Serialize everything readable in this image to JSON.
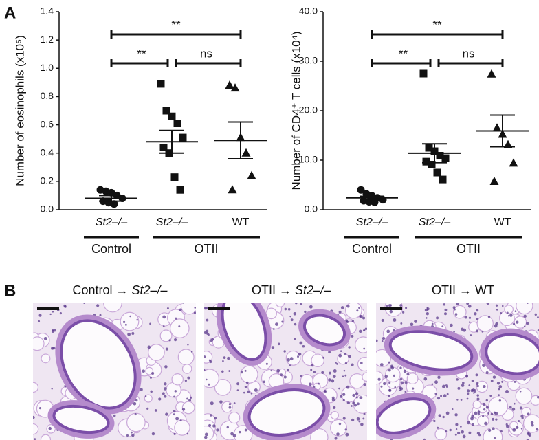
{
  "panel_labels": [
    "A",
    "B"
  ],
  "chart_data": [
    {
      "type": "dotplot",
      "y_label": "Number of eosinophils (x10⁵)",
      "categories": [
        "St2–/–",
        "St2–/–",
        "WT"
      ],
      "italic": [
        true,
        true,
        false
      ],
      "markers": [
        "circle",
        "square",
        "triangle"
      ],
      "color": "#111111",
      "groups": [
        "Control",
        "OTII"
      ],
      "points": [
        [
          0.14,
          0.13,
          0.12,
          0.1,
          0.08,
          0.06,
          0.05,
          0.04
        ],
        [
          0.89,
          0.7,
          0.66,
          0.61,
          0.51,
          0.44,
          0.4,
          0.23,
          0.14
        ],
        [
          0.88,
          0.86,
          0.51,
          0.4,
          0.24,
          0.14
        ]
      ],
      "means": [
        0.08,
        0.48,
        0.49
      ],
      "sems": [
        0.02,
        0.08,
        0.13
      ],
      "ylim": [
        0,
        1.4
      ],
      "yticks": [
        {
          "value": 0,
          "label": "0.0"
        },
        0.2,
        0.4,
        0.6,
        0.8,
        {
          "value": 1,
          "label": "1.0"
        },
        1.2,
        1.4
      ],
      "comparisons": [
        {
          "label": "**",
          "pair": [
            0,
            1
          ]
        },
        {
          "label": "ns",
          "pair": [
            1,
            2
          ]
        },
        {
          "label": "**",
          "pair": [
            0,
            2
          ]
        }
      ]
    },
    {
      "type": "dotplot",
      "y_label": "Number of CD4⁺ T cells (x10⁴)",
      "categories": [
        "St2–/–",
        "St2–/–",
        "WT"
      ],
      "italic": [
        true,
        true,
        false
      ],
      "markers": [
        "circle",
        "square",
        "triangle"
      ],
      "color": "#111111",
      "groups": [
        "Control",
        "OTII"
      ],
      "points": [
        [
          4.0,
          3.2,
          2.8,
          2.4,
          2.0,
          1.8,
          1.6,
          1.5
        ],
        [
          27.5,
          12.5,
          11.8,
          10.9,
          10.4,
          9.7,
          9.1,
          7.5,
          6.1
        ],
        [
          27.4,
          16.5,
          15.2,
          13.1,
          9.4,
          5.7
        ]
      ],
      "means": [
        2.4,
        11.4,
        15.9
      ],
      "sems": [
        0.3,
        1.9,
        3.2
      ],
      "ylim": [
        0,
        40
      ],
      "yticks": [
        {
          "value": 0,
          "label": "0.0"
        },
        {
          "value": 10,
          "label": "10.0"
        },
        {
          "value": 20,
          "label": "20.0"
        },
        {
          "value": 30,
          "label": "30.0"
        },
        {
          "value": 40,
          "label": "40.0"
        }
      ],
      "comparisons": [
        {
          "label": "**",
          "pair": [
            0,
            1
          ]
        },
        {
          "label": "ns",
          "pair": [
            1,
            2
          ]
        },
        {
          "label": "**",
          "pair": [
            0,
            2
          ]
        }
      ]
    }
  ],
  "histology": [
    {
      "title": "Control →",
      "genotype": "St2–/–",
      "italic": true
    },
    {
      "title": "OTII →",
      "genotype": "St2–/–",
      "italic": true
    },
    {
      "title": "OTII →",
      "genotype": "WT",
      "italic": false
    }
  ]
}
